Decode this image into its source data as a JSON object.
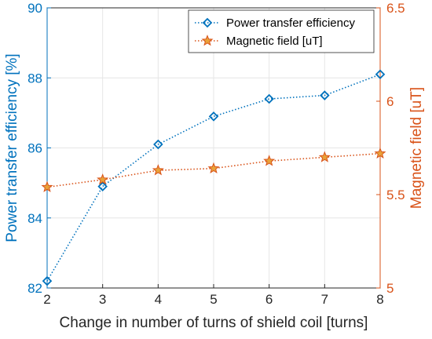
{
  "chart_data": {
    "type": "line",
    "x": [
      2,
      3,
      4,
      5,
      6,
      7,
      8
    ],
    "xlabel": "Change in number of turns of shield coil [turns]",
    "xlim": [
      2,
      8
    ],
    "xticks": [
      "2",
      "3",
      "4",
      "5",
      "6",
      "7",
      "8"
    ],
    "ylabel_left": "Power transfer efficiency [%]",
    "ylim_left": [
      82,
      90
    ],
    "yticks_left": [
      "82",
      "84",
      "86",
      "88",
      "90"
    ],
    "ylabel_right": "Magnetic field [uT]",
    "ylim_right": [
      5,
      6.5
    ],
    "yticks_right": [
      "5",
      "5.5",
      "6",
      "6.5"
    ],
    "grid": true,
    "legend_position": "top-right",
    "series": [
      {
        "name": "Power transfer efficiency",
        "axis": "left",
        "marker": "diamond",
        "line_style": "dotted",
        "color": "#0072BD",
        "values": [
          82.2,
          84.9,
          86.1,
          86.9,
          87.4,
          87.5,
          88.1
        ]
      },
      {
        "name": "Magnetic field [uT]",
        "axis": "right",
        "marker": "star",
        "line_style": "dotted",
        "color": "#D95319",
        "values": [
          5.54,
          5.58,
          5.63,
          5.64,
          5.68,
          5.7,
          5.72
        ]
      }
    ]
  },
  "colors": {
    "left_axis": "#0072BD",
    "right_axis": "#D95319",
    "grid": "#e6e6e6",
    "frame": "#262626"
  }
}
